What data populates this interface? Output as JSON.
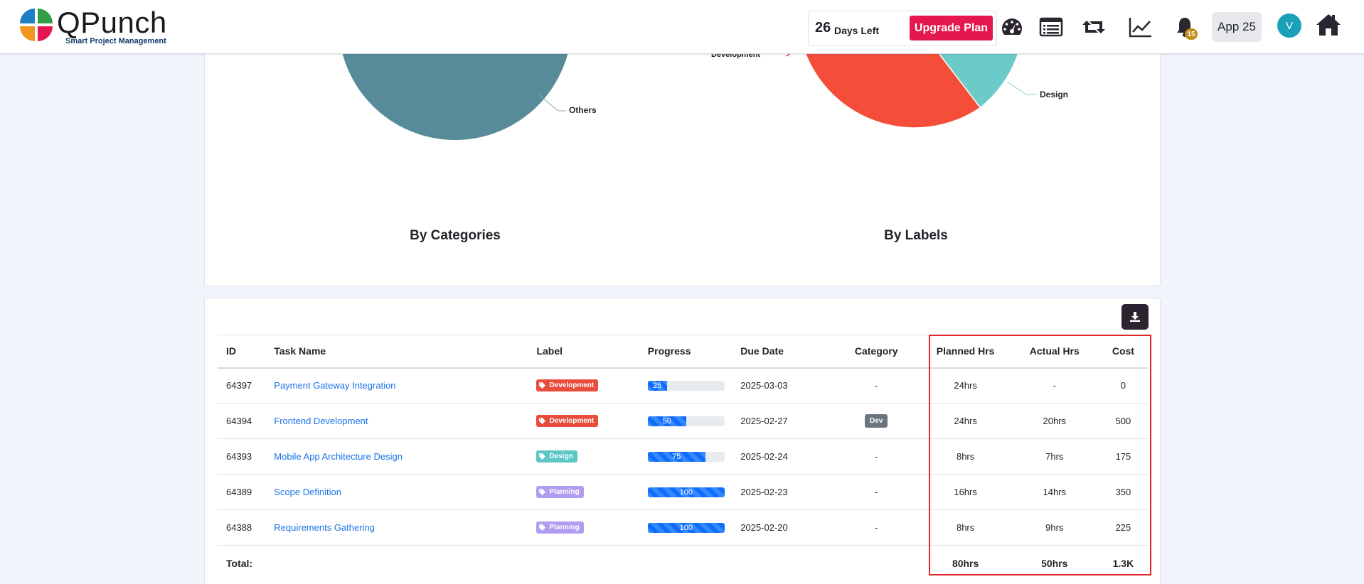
{
  "header": {
    "logo_name": "QPunch",
    "logo_tagline": "Smart Project Management",
    "days_left_number": "26",
    "days_left_label": "Days Left",
    "upgrade_label": "Upgrade Plan",
    "icons": [
      "dashboard-icon",
      "list-icon",
      "retweet-icon",
      "chart-line-icon",
      "bell-icon",
      "home-icon"
    ],
    "notification_count": "15",
    "app_label": "App 25",
    "avatar_initial": "V"
  },
  "charts": {
    "by_categories": {
      "caption": "By Categories",
      "slice_labels": [
        "Others"
      ],
      "colors": [
        "#578b9a"
      ]
    },
    "by_labels": {
      "caption": "By Labels",
      "slice_labels": [
        "Development",
        "Design"
      ],
      "colors": [
        "#f44e3b",
        "#6ccbc9"
      ]
    }
  },
  "table": {
    "columns": [
      "ID",
      "Task Name",
      "Label",
      "Progress",
      "Due Date",
      "Category",
      "Planned Hrs",
      "Actual Hrs",
      "Cost"
    ],
    "rows": [
      {
        "id": "64397",
        "name": "Payment Gateway Integration",
        "label": "Development",
        "label_color": "#e74c3c",
        "progress": 25,
        "progress_text": "25",
        "due": "2025-03-03",
        "category": "-",
        "planned": "24hrs",
        "actual": "-",
        "cost": "0"
      },
      {
        "id": "64394",
        "name": "Frontend Development",
        "label": "Development",
        "label_color": "#e74c3c",
        "progress": 50,
        "progress_text": "50",
        "due": "2025-02-27",
        "category": "Dev",
        "planned": "24hrs",
        "actual": "20hrs",
        "cost": "500"
      },
      {
        "id": "64393",
        "name": "Mobile App Architecture Design",
        "label": "Design",
        "label_color": "#5bc6c4",
        "progress": 75,
        "progress_text": "75",
        "due": "2025-02-24",
        "category": "-",
        "planned": "8hrs",
        "actual": "7hrs",
        "cost": "175"
      },
      {
        "id": "64389",
        "name": "Scope Definition",
        "label": "Planning",
        "label_color": "#b19cf0",
        "progress": 100,
        "progress_text": "100",
        "due": "2025-02-23",
        "category": "-",
        "planned": "16hrs",
        "actual": "14hrs",
        "cost": "350"
      },
      {
        "id": "64388",
        "name": "Requirements Gathering",
        "label": "Planning",
        "label_color": "#b19cf0",
        "progress": 100,
        "progress_text": "100",
        "due": "2025-02-20",
        "category": "-",
        "planned": "8hrs",
        "actual": "9hrs",
        "cost": "225"
      }
    ],
    "footer": {
      "label": "Total:",
      "planned": "80hrs",
      "actual": "50hrs",
      "cost": "1.3K"
    }
  }
}
